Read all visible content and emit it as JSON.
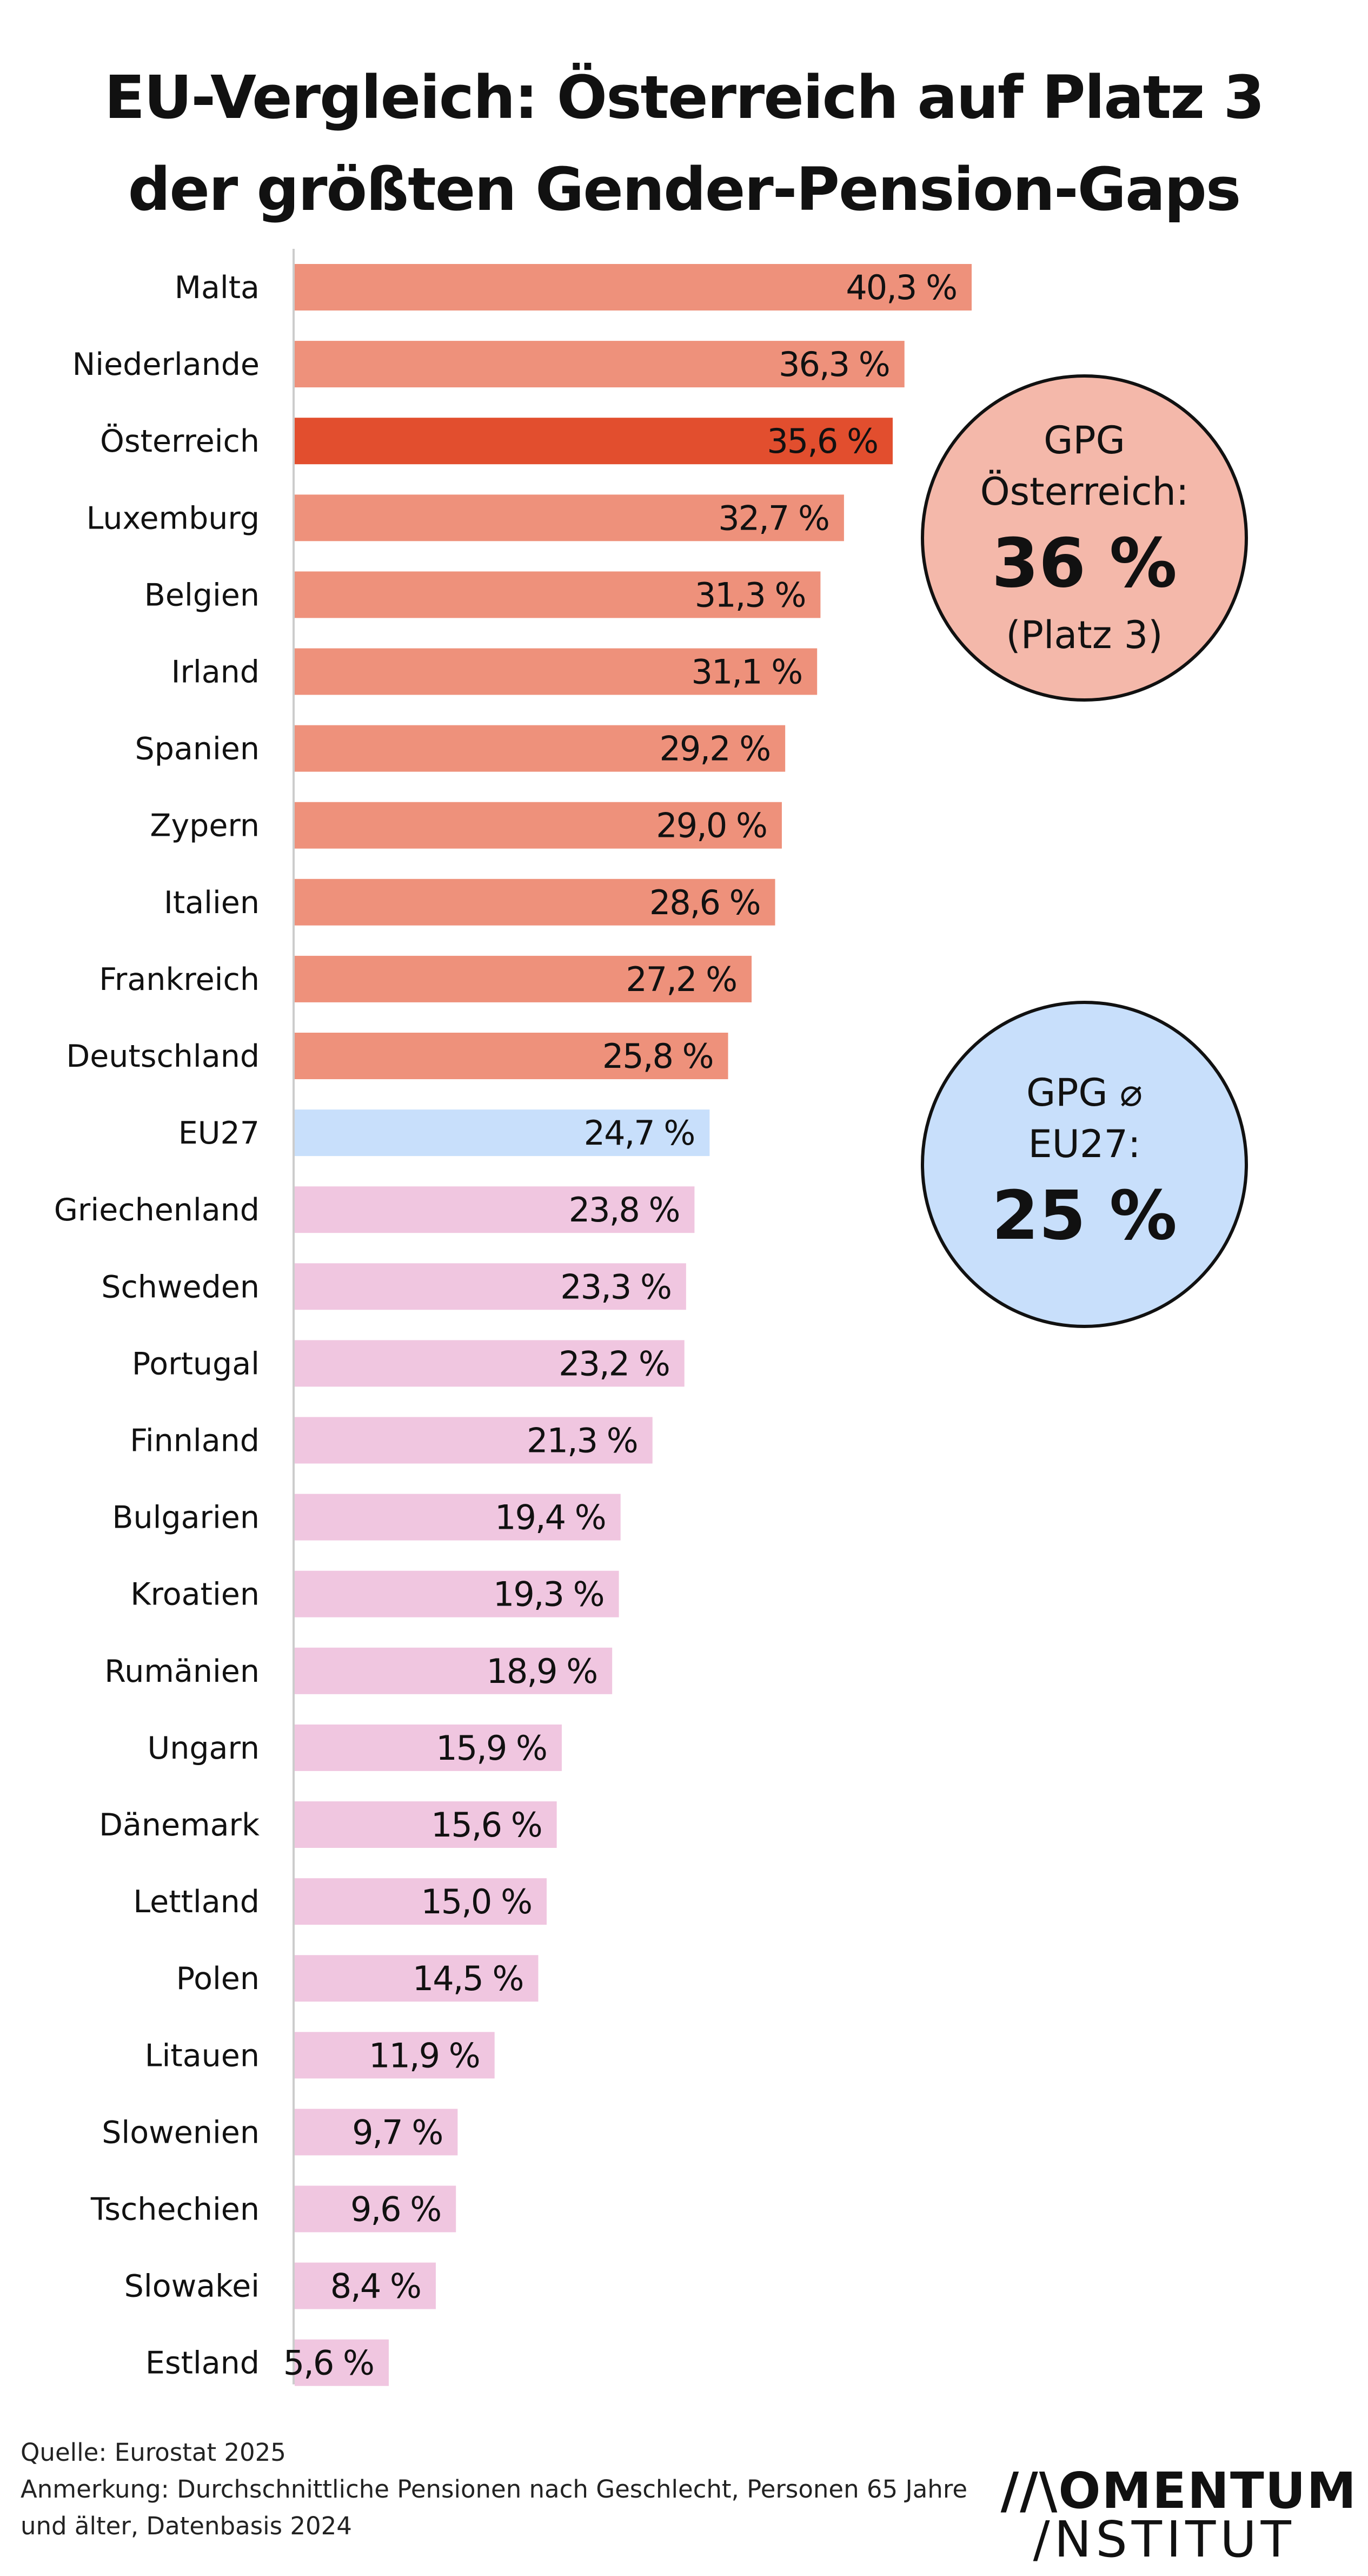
{
  "title": {
    "line1": "EU-Vergleich: Österreich auf Platz 3",
    "line2": "der größten Gender-Pension-Gaps"
  },
  "colors": {
    "above_avg": "#ee917b",
    "austria": "#e24e2e",
    "eu": "#c8dffb",
    "below_avg": "#f0c6e0",
    "axis": "#cccccc"
  },
  "chart_data": {
    "type": "bar",
    "orientation": "horizontal",
    "title": "EU-Vergleich: Österreich auf Platz 3 der größten Gender-Pension-Gaps",
    "xlim": [
      0,
      45
    ],
    "categories": [
      "Malta",
      "Niederlande",
      "Österreich",
      "Luxemburg",
      "Belgien",
      "Irland",
      "Spanien",
      "Zypern",
      "Italien",
      "Frankreich",
      "Deutschland",
      "EU27",
      "Griechenland",
      "Schweden",
      "Portugal",
      "Finnland",
      "Bulgarien",
      "Kroatien",
      "Rumänien",
      "Ungarn",
      "Dänemark",
      "Lettland",
      "Polen",
      "Litauen",
      "Slowenien",
      "Tschechien",
      "Slowakei",
      "Estland"
    ],
    "values": [
      40.3,
      36.3,
      35.6,
      32.7,
      31.3,
      31.1,
      29.2,
      29.0,
      28.6,
      27.2,
      25.8,
      24.7,
      23.8,
      23.3,
      23.2,
      21.3,
      19.4,
      19.3,
      18.9,
      15.9,
      15.6,
      15.0,
      14.5,
      11.9,
      9.7,
      9.6,
      8.4,
      5.6
    ],
    "labels": [
      "40,3 %",
      "36,3 %",
      "35,6 %",
      "32,7 %",
      "31,3 %",
      "31,1 %",
      "29,2 %",
      "29,0 %",
      "28,6 %",
      "27,2 %",
      "25,8 %",
      "24,7 %",
      "23,8 %",
      "23,3 %",
      "23,2 %",
      "21,3 %",
      "19,4 %",
      "19,3 %",
      "18,9 %",
      "15,9 %",
      "15,6 %",
      "15,0 %",
      "14,5 %",
      "11,9 %",
      "9,7 %",
      "9,6 %",
      "8,4 %",
      "5,6 %"
    ],
    "highlight": "Österreich",
    "reference": "EU27",
    "grid": false
  },
  "callouts": {
    "austria": {
      "line1": "GPG",
      "line2": "Österreich:",
      "value": "36 %",
      "note": "(Platz 3)"
    },
    "eu": {
      "line1": "GPG ⌀",
      "line2": "EU27:",
      "value": "25 %"
    }
  },
  "footer": {
    "source": "Quelle: Eurostat 2025",
    "note_line1": "Anmerkung: Durchschnittliche Pensionen nach Geschlecht, Personen 65 Jahre",
    "note_line2": "und älter, Datenbasis 2024"
  },
  "logo": {
    "top": "//\\OMENTUM",
    "bottom": "/NSTITUT"
  }
}
